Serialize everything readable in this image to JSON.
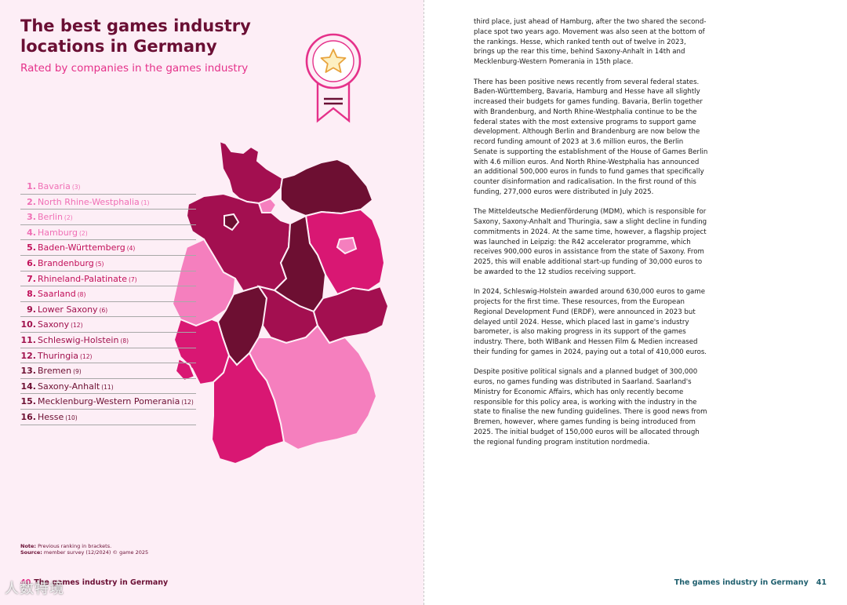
{
  "title": "The best games industry locations in Germany",
  "subtitle": "Rated by companies in the games industry",
  "colors": {
    "background_left": "#fdeef6",
    "dark_plum": "#6a0f34",
    "magenta": "#e5318a",
    "rank_pink_light": "#f06fb5",
    "rank_magenta": "#c2105a",
    "rank_dark": "#6d0f32",
    "rank_medium": "#a0104c",
    "footer_teal": "#1f5f6e"
  },
  "badge": {
    "icon": "award-ribbon-star-icon"
  },
  "ranking": [
    {
      "rank": "1.",
      "name": "Bavaria",
      "prev": "(3)",
      "color": "#f06fb5"
    },
    {
      "rank": "2.",
      "name": "North Rhine-Westphalia",
      "prev": "(1)",
      "color": "#f06fb5"
    },
    {
      "rank": "3.",
      "name": "Berlin",
      "prev": "(2)",
      "color": "#f06fb5"
    },
    {
      "rank": "4.",
      "name": "Hamburg",
      "prev": "(2)",
      "color": "#f06fb5"
    },
    {
      "rank": "5.",
      "name": "Baden-Württemberg",
      "prev": "(4)",
      "color": "#c2105a"
    },
    {
      "rank": "6.",
      "name": "Brandenburg",
      "prev": "(5)",
      "color": "#c2105a"
    },
    {
      "rank": "7.",
      "name": "Rhineland-Palatinate",
      "prev": "(7)",
      "color": "#c2105a"
    },
    {
      "rank": "8.",
      "name": "Saarland",
      "prev": "(8)",
      "color": "#c2105a"
    },
    {
      "rank": "9.",
      "name": "Lower Saxony",
      "prev": "(6)",
      "color": "#a0104c"
    },
    {
      "rank": "10.",
      "name": "Saxony",
      "prev": "(12)",
      "color": "#a0104c"
    },
    {
      "rank": "11.",
      "name": "Schleswig-Holstein",
      "prev": "(8)",
      "color": "#a0104c"
    },
    {
      "rank": "12.",
      "name": "Thuringia",
      "prev": "(12)",
      "color": "#a0104c"
    },
    {
      "rank": "13.",
      "name": "Bremen",
      "prev": "(9)",
      "color": "#6d0f32"
    },
    {
      "rank": "14.",
      "name": "Saxony-Anhalt",
      "prev": "(11)",
      "color": "#6d0f32"
    },
    {
      "rank": "15.",
      "name": "Mecklenburg-Western Pomerania",
      "prev": "(12)",
      "color": "#6d0f32"
    },
    {
      "rank": "16.",
      "name": "Hesse",
      "prev": "(10)",
      "color": "#6d0f32"
    }
  ],
  "map": {
    "icon": "germany-states-map",
    "colors": {
      "light": "#f57fbe",
      "magenta": "#d91773",
      "medium": "#a30f50",
      "dark": "#6d0f32"
    }
  },
  "notes": {
    "note_label": "Note:",
    "note_text": "Previous ranking in brackets.",
    "source_label": "Source:",
    "source_text": "member survey (12/2024) © game 2025"
  },
  "footer_left": {
    "page": "40",
    "text": "The games industry in Germany"
  },
  "footer_right": {
    "text": "The games industry in Germany",
    "page": "41"
  },
  "watermark": "人数特境",
  "body_paragraphs": [
    "third place, just ahead of Hamburg, after the two shared the second-place spot two years ago. Movement was also seen at the bottom of the rankings. Hesse, which ranked tenth out of twelve in 2023, brings up the rear this time, behind Saxony-Anhalt in 14th and Mecklenburg-Western Pomerania in 15th place.",
    "There has been positive news recently from several federal states. Baden-Württemberg, Bavaria, Hamburg and Hesse have all slightly increased their budgets for games funding. Bavaria, Berlin together with Brandenburg, and North Rhine-Westphalia continue to be the federal states with the most extensive programs to support game development. Although Berlin and Brandenburg are now below the record funding amount of 2023 at 3.6 million euros, the Berlin Senate is supporting the establishment of the House of Games Berlin with 4.6 million euros. And North Rhine-Westphalia has announced an additional 500,000 euros in funds to fund games that specifically counter disinformation and radicalisation. In the first round of this funding, 277,000 euros were distributed in July 2025.",
    "The Mitteldeutsche Medienförderung (MDM), which is responsible for Saxony, Saxony-Anhalt and Thuringia, saw a slight decline in funding commitments in 2024. At the same time, however, a flagship project was launched in Leipzig: the R42 accelerator programme, which receives 900,000 euros in assistance from the state of Saxony. From 2025, this will enable additional start-up funding of 30,000 euros to be awarded to the 12 studios receiving support.",
    "In 2024, Schleswig-Holstein awarded around 630,000 euros to game projects for the first time. These resources, from the European Regional Development Fund (ERDF), were announced in 2023 but delayed until 2024. Hesse, which placed last in game's industry barometer, is also making progress in its support of the games industry. There, both WIBank and Hessen Film & Medien increased their funding for games in 2024, paying out a total of 410,000 euros.",
    "Despite positive political signals and a planned budget of 300,000 euros, no games funding was distributed in Saarland. Saarland's Ministry for Economic Affairs, which has only recently become responsible for this policy area, is working with the industry in the state to finalise the new funding guidelines. There is good news from Bremen, however, where games funding is being introduced from 2025. The initial budget of 150,000 euros will be allocated through the regional funding program institution nordmedia."
  ]
}
